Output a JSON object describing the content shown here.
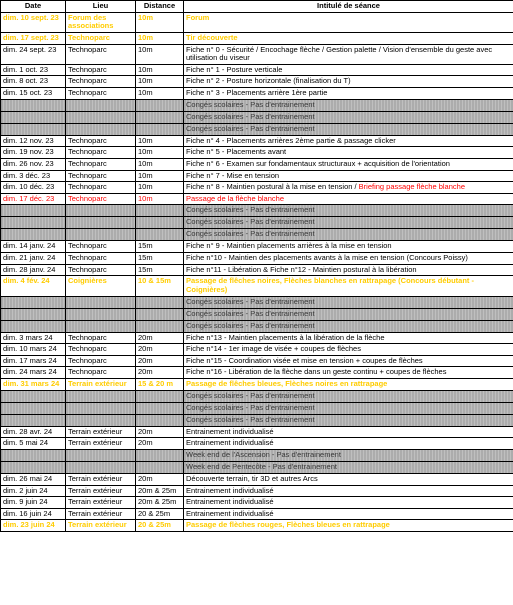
{
  "headers": {
    "date": "Date",
    "lieu": "Lieu",
    "distance": "Distance",
    "intitule": "Intitulé de séance"
  },
  "rows": [
    {
      "type": "event-yellow",
      "date": "dim. 10 sept. 23",
      "lieu": "Forum des associations",
      "dist": "10m",
      "intitule": "Forum"
    },
    {
      "type": "event-yellow",
      "date": "dim. 17 sept. 23",
      "lieu": "Technoparc",
      "dist": "10m",
      "intitule": "Tir découverte"
    },
    {
      "type": "session",
      "date": "dim. 24 sept. 23",
      "lieu": "Technoparc",
      "dist": "10m",
      "intitule": "Fiche n° 0 - Sécurité / Encochage flèche / Gestion palette / Vision d'ensemble du geste avec utilisation du viseur"
    },
    {
      "type": "session",
      "date": "dim. 1 oct. 23",
      "lieu": "Technoparc",
      "dist": "10m",
      "intitule": "Fiche n° 1 - Posture verticale"
    },
    {
      "type": "session",
      "date": "dim. 8 oct. 23",
      "lieu": "Technoparc",
      "dist": "10m",
      "intitule": "Fiche n° 2 - Posture horizontale (finalisation du T)"
    },
    {
      "type": "session",
      "date": "dim. 15 oct. 23",
      "lieu": "Technoparc",
      "dist": "10m",
      "intitule": "Fiche n° 3 - Placements arrière 1ère partie"
    },
    {
      "type": "conges",
      "intitule": "Congés scolaires - Pas d'entrainement"
    },
    {
      "type": "conges",
      "intitule": "Congés scolaires - Pas d'entrainement"
    },
    {
      "type": "conges",
      "intitule": "Congés scolaires - Pas d'entrainement"
    },
    {
      "type": "session",
      "date": "dim. 12 nov. 23",
      "lieu": "Technoparc",
      "dist": "10m",
      "intitule": "Fiche n° 4 - Placements arrières 2ème partie & passage clicker"
    },
    {
      "type": "session",
      "date": "dim. 19 nov. 23",
      "lieu": "Technoparc",
      "dist": "10m",
      "intitule": "Fiche n° 5 - Placements avant"
    },
    {
      "type": "session",
      "date": "dim. 26 nov. 23",
      "lieu": "Technoparc",
      "dist": "10m",
      "intitule": "Fiche n° 6 - Examen sur fondamentaux structuraux + acquisition de l'orientation"
    },
    {
      "type": "session",
      "date": "dim. 3 déc. 23",
      "lieu": "Technoparc",
      "dist": "10m",
      "intitule": "Fiche n° 7 - Mise en tension"
    },
    {
      "type": "session",
      "date": "dim. 10 déc. 23",
      "lieu": "Technoparc",
      "dist": "10m",
      "intitule": "Fiche n° 8 - Maintien postural à la mise en tension / ",
      "extra": "Briefing passage flèche blanche",
      "extraColor": "fg-red"
    },
    {
      "type": "passage-red",
      "date": "dim. 17 déc. 23",
      "lieu": "Technoparc",
      "dist": "10m",
      "intitule": "Passage de la flèche blanche"
    },
    {
      "type": "conges",
      "intitule": "Congés scolaires - Pas d'entrainement"
    },
    {
      "type": "conges",
      "intitule": "Congés scolaires - Pas d'entrainement"
    },
    {
      "type": "conges",
      "intitule": "Congés scolaires - Pas d'entrainement"
    },
    {
      "type": "session",
      "date": "dim. 14 janv. 24",
      "lieu": "Technoparc",
      "dist": "15m",
      "intitule": "Fiche n° 9 - Maintien placements arrières à la mise en tension"
    },
    {
      "type": "session",
      "date": "dim. 21 janv. 24",
      "lieu": "Technoparc",
      "dist": "15m",
      "intitule": "Fiche n°10 - Maintien des placements avants à la mise en tension (Concours Poissy)"
    },
    {
      "type": "session",
      "date": "dim. 28 janv. 24",
      "lieu": "Technoparc",
      "dist": "15m",
      "intitule": "Fiche n°11 - Libération & Fiche n°12 - Maintien postural à la libération"
    },
    {
      "type": "passage-yellow",
      "date": "dim. 4 fév. 24",
      "lieu": "Coignières",
      "dist": "10 & 15m",
      "intitule": "Passage de flêches noires, Flèches blanches en rattrapage (Concours débutant - Coignières)"
    },
    {
      "type": "conges",
      "intitule": "Congés scolaires - Pas d'entrainement"
    },
    {
      "type": "conges",
      "intitule": "Congés scolaires - Pas d'entrainement"
    },
    {
      "type": "conges",
      "intitule": "Congés scolaires - Pas d'entrainement"
    },
    {
      "type": "session",
      "date": "dim. 3 mars 24",
      "lieu": "Technoparc",
      "dist": "20m",
      "intitule": "Fiche n°13 - Maintien placements à la libération de la flèche"
    },
    {
      "type": "session",
      "date": "dim. 10 mars 24",
      "lieu": "Technoparc",
      "dist": "20m",
      "intitule": "Fiche n°14 - 1er image de visée + coupes de flèches"
    },
    {
      "type": "session",
      "date": "dim. 17 mars 24",
      "lieu": "Technoparc",
      "dist": "20m",
      "intitule": "Fiche n°15 - Coordination visée et mise en tension + coupes de flèches"
    },
    {
      "type": "session",
      "date": "dim. 24 mars 24",
      "lieu": "Technoparc",
      "dist": "20m",
      "intitule": "Fiche n°16 - Libération de la flèche dans un geste continu + coupes de flèches"
    },
    {
      "type": "passage-yellow",
      "date": "dim. 31 mars 24",
      "lieu": "Terrain extérieur",
      "dist": "15 & 20 m",
      "intitule": "Passage de flêches bleues, Flèches noires en rattrapage"
    },
    {
      "type": "conges",
      "intitule": "Congés scolaires - Pas d'entrainement"
    },
    {
      "type": "conges",
      "intitule": "Congés scolaires - Pas d'entrainement"
    },
    {
      "type": "conges",
      "intitule": "Congés scolaires - Pas d'entrainement"
    },
    {
      "type": "session",
      "date": "dim. 28 avr. 24",
      "lieu": "Terrain extérieur",
      "dist": "20m",
      "intitule": "Entrainement individualisé"
    },
    {
      "type": "session",
      "date": "dim. 5 mai 24",
      "lieu": "Terrain extérieur",
      "dist": "20m",
      "intitule": "Entrainement individualisé"
    },
    {
      "type": "conges-plain",
      "intitule": "Week end de l'Ascension - Pas d'entrainement"
    },
    {
      "type": "conges-plain",
      "intitule": "Week end de Pentecôte - Pas d'entrainement"
    },
    {
      "type": "session",
      "date": "dim. 26 mai 24",
      "lieu": "Terrain extérieur",
      "dist": "20m",
      "intitule": "Découverte terrain, tir 3D et autres Arcs"
    },
    {
      "type": "session",
      "date": "dim. 2 juin 24",
      "lieu": "Terrain extérieur",
      "dist": "20m & 25m",
      "intitule": "Entrainement individualisé"
    },
    {
      "type": "session",
      "date": "dim. 9 juin 24",
      "lieu": "Terrain extérieur",
      "dist": "20m & 25m",
      "intitule": "Entrainement individualisé"
    },
    {
      "type": "session",
      "date": "dim. 16 juin 24",
      "lieu": "Terrain extérieur",
      "dist": "20 & 25m",
      "intitule": "Entrainement individualisé"
    },
    {
      "type": "passage-yellow",
      "date": "dim. 23 juin 24",
      "lieu": "Terrain extérieur",
      "dist": "20 & 25m",
      "intitule": "Passage de flèches rouges, Flèches bleues en rattrapage"
    }
  ]
}
